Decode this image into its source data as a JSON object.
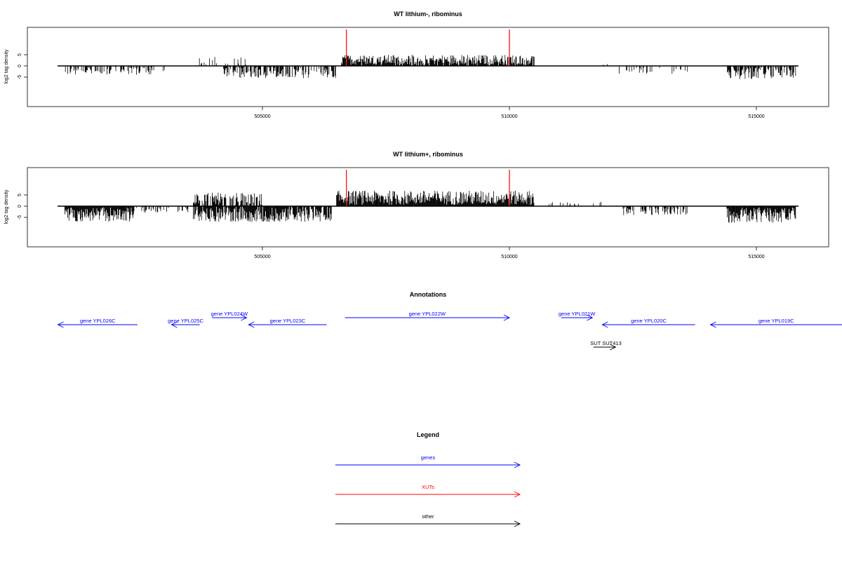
{
  "chart_data": [
    {
      "type": "bar",
      "title": "WT lithium-, ribominus",
      "xlabel": "",
      "ylabel": "log2 tag density",
      "xlim": [
        500860,
        516920
      ],
      "ylim": [
        -8,
        8
      ],
      "xticks": [
        "505000",
        "510000",
        "515000"
      ],
      "yticks": [
        "5",
        "0",
        "-5"
      ],
      "xtick_values": [
        505000,
        510000,
        515000
      ],
      "ytick_values": [
        5,
        0,
        -5
      ],
      "markers": {
        "color": "#ff0000",
        "x": [
          506700,
          510000
        ]
      },
      "density": [
        {
          "x0": 501000,
          "x1": 502800,
          "sign": -1,
          "max": 4,
          "density": 0.45
        },
        {
          "x0": 502800,
          "x1": 503200,
          "sign": -1,
          "max": 2.5,
          "density": 0.1
        },
        {
          "x0": 503700,
          "x1": 504700,
          "sign": 1,
          "max": 4,
          "density": 0.25
        },
        {
          "x0": 504200,
          "x1": 506500,
          "sign": -1,
          "max": 5.5,
          "density": 0.6
        },
        {
          "x0": 506600,
          "x1": 510500,
          "sign": 1,
          "max": 5,
          "density": 0.9
        },
        {
          "x0": 511900,
          "x1": 512000,
          "sign": 1,
          "max": 3,
          "density": 0.2
        },
        {
          "x0": 512200,
          "x1": 513700,
          "sign": -1,
          "max": 3.5,
          "density": 0.2
        },
        {
          "x0": 514400,
          "x1": 515800,
          "sign": -1,
          "max": 6,
          "density": 0.7
        }
      ]
    },
    {
      "type": "bar",
      "title": "WT lithium+, ribominus",
      "xlabel": "",
      "ylabel": "log2 tag density",
      "xlim": [
        500860,
        516920
      ],
      "ylim": [
        -8,
        8
      ],
      "xticks": [
        "505000",
        "510000",
        "515000"
      ],
      "yticks": [
        "5",
        "0",
        "-5"
      ],
      "xtick_values": [
        505000,
        510000,
        515000
      ],
      "ytick_values": [
        5,
        0,
        -5
      ],
      "markers": {
        "color": "#ff0000",
        "x": [
          506700,
          510000
        ]
      },
      "density": [
        {
          "x0": 501000,
          "x1": 502400,
          "sign": -1,
          "max": 7,
          "density": 1.0
        },
        {
          "x0": 502400,
          "x1": 503500,
          "sign": -1,
          "max": 3,
          "density": 0.3
        },
        {
          "x0": 503600,
          "x1": 505000,
          "sign": 1,
          "max": 6,
          "density": 0.7
        },
        {
          "x0": 503600,
          "x1": 506400,
          "sign": -1,
          "max": 7,
          "density": 0.9
        },
        {
          "x0": 506500,
          "x1": 510500,
          "sign": 1,
          "max": 7,
          "density": 1.0
        },
        {
          "x0": 510800,
          "x1": 511900,
          "sign": 1,
          "max": 2,
          "density": 0.15
        },
        {
          "x0": 512300,
          "x1": 513600,
          "sign": -1,
          "max": 4,
          "density": 0.5
        },
        {
          "x0": 514400,
          "x1": 515800,
          "sign": -1,
          "max": 7.5,
          "density": 1.0
        }
      ]
    }
  ],
  "annotations": {
    "title": "Annotations",
    "genes": [
      {
        "label": "gene YPL026C",
        "from": 502470,
        "to": 500860,
        "row": 2
      },
      {
        "label": "gene YPL025C",
        "from": 503730,
        "to": 503160,
        "row": 2
      },
      {
        "label": "gene YPL024W",
        "from": 503980,
        "to": 504680,
        "row": 1
      },
      {
        "label": "gene YPL023C",
        "from": 506300,
        "to": 504720,
        "row": 2
      },
      {
        "label": "gene YPL022W",
        "from": 506670,
        "to": 510000,
        "row": 1
      },
      {
        "label": "gene YPL021W",
        "from": 511050,
        "to": 511680,
        "row": 1
      },
      {
        "label": "gene YPL020C",
        "from": 513760,
        "to": 511880,
        "row": 2
      },
      {
        "label": "gene YPL019C",
        "from": 516920,
        "to": 514070,
        "row": 2
      }
    ],
    "other": [
      {
        "label": "SUT SUT413",
        "from": 511700,
        "to": 512150,
        "row": 3
      }
    ]
  },
  "legend": {
    "title": "Legend",
    "items": [
      {
        "label": "genes",
        "color": "#0000ff"
      },
      {
        "label": "XUTs",
        "color": "#ff0000"
      },
      {
        "label": "other",
        "color": "#000000"
      }
    ]
  }
}
